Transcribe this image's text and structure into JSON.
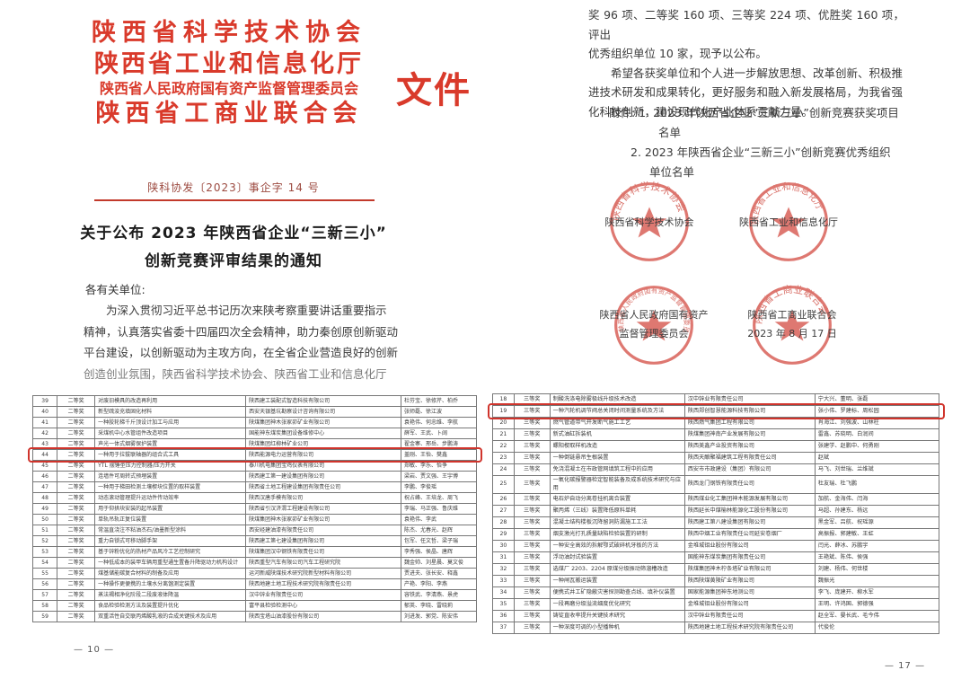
{
  "left_page": {
    "orgs": [
      "陕西省科学技术协会",
      "陕西省工业和信息化厅",
      "陕西省人民政府国有资产监督管理委员会",
      "陕西省工商业联合会"
    ],
    "file_label": "文件",
    "doc_number": "陕科协发〔2023〕事企字 14 号",
    "title_line1": "关于公布 2023 年陕西省企业“三新三小”",
    "title_line2": "创新竞赛评审结果的通知",
    "salutation": "各有关单位:",
    "body_lines": [
      "为深入贯彻习近平总书记历次来陕考察重要讲话重要指示",
      "精神，认真落实省委十四届四次全会精神，助力秦创原创新驱动",
      "平台建设，以创新驱动为主攻方向，在全省企业营造良好的创新",
      "创造创业氛围，陕西省科学技术协会、陕西省工业和信息化厅"
    ]
  },
  "right_page": {
    "body_lines": [
      "奖 96 项、二等奖 160 项、三等奖 224 项、优胜奖 160 项，评出",
      "优秀组织单位 10 家，现予以公布。",
      "希望各获奖单位和个人进一步解放思想、改革创新、积极推",
      "进技术研发和成果转化，更好服务和融入新发展格局，为我省强",
      "化科技创新，建设现代化产业体系贡献力量。"
    ],
    "attachment_lines": [
      "附件: 1. 2023 年陕西省企业“三新三小”创新竞赛获奖项目",
      "名单",
      "2. 2023 年陕西省企业“三新三小”创新竞赛优秀组织",
      "单位名单"
    ],
    "seals": [
      {
        "arc": "陕西省科学技术协会",
        "label": "陕西省科学技术协会",
        "label2": ""
      },
      {
        "arc": "陕西省工业和信息化厅",
        "label": "陕西省工业和信息化厅",
        "label2": ""
      },
      {
        "arc": "陕西省人民政府国有资产监督管理委员会",
        "label": "陕西省人民政府国有资产",
        "label2": "监督管理委员会"
      },
      {
        "arc": "陕西省工商业联合会",
        "label": "陕西省工商业联合会",
        "label2": "2023 年 8 月 17 日"
      }
    ]
  },
  "left_table": {
    "page_number": "— 10 —",
    "rows": [
      {
        "no": "39",
        "award": "二等奖",
        "project": "对废旧模具的改造再利用",
        "company": "陕西建工装配式智造科技有限公司",
        "names": "杜芬宝、徐修芹、柏乔",
        "highlight": false
      },
      {
        "no": "40",
        "award": "二等奖",
        "project": "新型疏浚充填固化材料",
        "company": "西安天银基坑勘察设计咨询有限公司",
        "names": "张师磊、徐江波",
        "highlight": false
      },
      {
        "no": "41",
        "award": "二等奖",
        "project": "一种胶轮梯千斤顶设计加工与应用",
        "company": "陕煤集团神木张家峁矿业有限公司",
        "names": "袁艳伟、何忠维、李航",
        "highlight": false
      },
      {
        "no": "42",
        "award": "二等奖",
        "project": "采煤机中心水管组件改造项目",
        "company": "国能神东煤炭集团设备维修中心",
        "names": "薛军、王武、卜阔",
        "highlight": false
      },
      {
        "no": "43",
        "award": "二等奖",
        "project": "声光一体式烟雾保护装置",
        "company": "陕煤集团红柳林矿业公司",
        "names": "翟金寨、邢岳、步鹏涛",
        "highlight": false
      },
      {
        "no": "44",
        "award": "二等奖",
        "project": "一种用于拉拔联轴器的组合式工具",
        "company": "陕西能源电力运营有限公司",
        "names": "盖刚、王怡、樊鑫",
        "highlight": true
      },
      {
        "no": "45",
        "award": "二等奖",
        "project": "YTL 摆锤型压力控制器/压力开关",
        "company": "泰川机电集团宝鸡仪表有限公司",
        "names": "郑敏、李乐、怡争",
        "highlight": false
      },
      {
        "no": "46",
        "award": "二等奖",
        "project": "连墙件可周转式预埋装置",
        "company": "陕西建工第一建设集团有限公司",
        "names": "梁岩、贾文强、王宇博",
        "highlight": false
      },
      {
        "no": "47",
        "award": "二等奖",
        "project": "一种用于梯田检测土壤楔块位置的取样装置",
        "company": "陕西省土地工程建设集团有限责任公司",
        "names": "李鹏、李俊瑶",
        "highlight": false
      },
      {
        "no": "48",
        "award": "二等奖",
        "project": "动态滚动管理提升运动件传动效率",
        "company": "陕西汉唐手模有限公司",
        "names": "祝占峰、王培龙、周飞",
        "highlight": false
      },
      {
        "no": "49",
        "award": "二等奖",
        "project": "用于仰拱块安装的起吊装置",
        "company": "陕西省引汉济渭工程建设有限公司",
        "names": "李瑞、马正强、鲁庆维",
        "highlight": false
      },
      {
        "no": "50",
        "award": "二等奖",
        "project": "单轨吊轨正复位装置",
        "company": "陕煤集团神木张家峁矿业有限公司",
        "names": "袁艳伟、李武",
        "highlight": false
      },
      {
        "no": "51",
        "award": "二等奖",
        "project": "常温直浇注不粘油杰石/油墨新型涂料",
        "company": "西安经建油漆有限责任公司",
        "names": "陈杰、尤春光、赵辉",
        "highlight": false
      },
      {
        "no": "52",
        "award": "二等奖",
        "project": "重力自锁式可移动脚手架",
        "company": "陕西建工第七建设集团有限公司",
        "names": "包军、任文哲、梁子瑞",
        "highlight": false
      },
      {
        "no": "53",
        "award": "二等奖",
        "project": "基于锌粉优化的热材产品风冷工艺控制研究",
        "company": "陕煤集团汉中钢铁有限责任公司",
        "names": "李秀强、侯晶、唐辉",
        "highlight": false
      },
      {
        "no": "54",
        "award": "二等奖",
        "project": "一种低成本的装甲车辆用重型通生置备升降驱动力机构设计",
        "company": "陕西重型汽车有限公司汽车工程研究院",
        "names": "魏金帅、刘星晨、莫文俊",
        "highlight": false
      },
      {
        "no": "55",
        "award": "二等奖",
        "project": "煤基储能碳复合材料的制备及应用",
        "company": "运河新威陕煤技术研究院新型材料有限公司",
        "names": "贾进夫、张长安、释鑫",
        "highlight": false
      },
      {
        "no": "56",
        "award": "二等奖",
        "project": "一种操作更便携的土壤水分离馏测定装置",
        "company": "陕西地建土地工程技术研究院有限责任公司",
        "names": "产艳、李阳、李燕",
        "highlight": false
      },
      {
        "no": "57",
        "award": "二等奖",
        "project": "蒸法褐相净化阶段二段废液体降温",
        "company": "汉中锌业有限责任公司",
        "names": "容铁武、李清燕、景虎",
        "highlight": false
      },
      {
        "no": "58",
        "award": "二等奖",
        "project": "食品检验检测方法及装置提升优化",
        "company": "富平县检验检测中心",
        "names": "郁英、李晓、雷晓莉",
        "highlight": false
      },
      {
        "no": "59",
        "award": "二等奖",
        "project": "双重活性自交联丙烯酸乳液的合成关键技术及应用",
        "company": "陕西宝塔山油漆股份有限公司",
        "names": "刘进发、郭党、陈安伟",
        "highlight": false
      }
    ]
  },
  "right_table": {
    "page_number": "— 17 —",
    "rows": [
      {
        "no": "18",
        "award": "三等奖",
        "project": "制酸洗涤电除雾极线升级技术改造",
        "company": "汉中锌业有限责任公司",
        "names": "宁大兴、董明、张磊",
        "highlight": false
      },
      {
        "no": "19",
        "award": "三等奖",
        "project": "一种汽轮机调节阀总关闭时间测量系统及方法",
        "company": "陕西郑创智慧能源科技有限公司",
        "names": "张小伟、罗建标、周松园",
        "highlight": true
      },
      {
        "no": "20",
        "award": "三等奖",
        "project": "燃气管道带气开发断气施工工艺",
        "company": "陕西燃气集团工程有限公司",
        "names": "肖海江、刘强波、山林柱",
        "highlight": false
      },
      {
        "no": "21",
        "award": "三等奖",
        "project": "新式油缸拆装机",
        "company": "陕煤集团神南产业发展有限公司",
        "names": "雷鑫、苏晓明、白润间",
        "highlight": false
      },
      {
        "no": "22",
        "award": "三等奖",
        "project": "螺阳楔取样机改造",
        "company": "陕西美鑫产业投资有限公司",
        "names": "张建学、赵鹏中、何勇刚",
        "highlight": false
      },
      {
        "no": "23",
        "award": "三等奖",
        "project": "一种倒链悬吊生根装置",
        "company": "陕西天酿聚福建筑工程有限责任公司",
        "names": "赵斌",
        "highlight": false
      },
      {
        "no": "24",
        "award": "三等奖",
        "project": "免浇混凝土在市政管网填筑工程中的应用",
        "company": "西安市市政建设（集团）有限公司",
        "names": "马飞、刘世瑞、兰维斌",
        "highlight": false
      },
      {
        "no": "25",
        "award": "三等奖",
        "project": "一氧化碳报警器检定智能装备及成系统技术研究与应用",
        "company": "陕西龙门钢铁有限责任公司",
        "names": "杜友瑞、杜飞鹏",
        "highlight": false
      },
      {
        "no": "26",
        "award": "三等奖",
        "project": "电石炉自动分离卷挂机离合装置",
        "company": "陕西煤业化工集团神木能源发展有限公司",
        "names": "加航、金海伟、闫海",
        "highlight": false
      },
      {
        "no": "27",
        "award": "三等奖",
        "project": "聚丙烯（三线）装置降低原料单耗",
        "company": "陕西延长中煤榆林能源化工股份有限公司",
        "names": "马超、孙建东、杨远",
        "highlight": false
      },
      {
        "no": "28",
        "award": "三等奖",
        "project": "混凝土结构楼板沉降留洞防漏施工工法",
        "company": "陕西建工第八建设集团有限公司",
        "names": "黑金军、吕航、祝瑶源",
        "highlight": false
      },
      {
        "no": "29",
        "award": "三等奖",
        "project": "烟支激光打孔质量缺陷检验装置的研制",
        "company": "陕西中烟工业有限责任公司延安卷烟厂",
        "names": "高振报、郭建敏、王虹",
        "highlight": false
      },
      {
        "no": "30",
        "award": "三等奖",
        "project": "一种安全高效的拆解鄂式破碎机牙板的方法",
        "company": "金堆城钼业股份有限公司",
        "names": "闫光、薛冰、苏鹏宇",
        "highlight": false
      },
      {
        "no": "31",
        "award": "三等奖",
        "project": "浮动油封试验装置",
        "company": "国能神东煤炭集团有限责任公司",
        "names": "王艳斌、陈伟、侯强",
        "highlight": false
      },
      {
        "no": "32",
        "award": "三等奖",
        "project": "选煤厂 2203、2204 原煤分级振动筛溜槽改造",
        "company": "陕煤集团神木柠条塔矿业有限公司",
        "names": "刘建、杨伟、何世楼",
        "highlight": false
      },
      {
        "no": "33",
        "award": "三等奖",
        "project": "一种闸瓦搬运装置",
        "company": "陕西陕煤黄陵矿业有限公司",
        "names": "魏振光",
        "highlight": false
      },
      {
        "no": "34",
        "award": "三等奖",
        "project": "便携式井工矿隐蔽灾害探测勘查点线、填补仪装置",
        "company": "国家能源集团神东地测公司",
        "names": "李飞、庞建开、柳水军",
        "highlight": false
      },
      {
        "no": "35",
        "award": "三等奖",
        "project": "一段再磨分级溢流细度优化研究",
        "company": "金堆城钼业股份有限公司",
        "names": "王明、许鸿国、郭德强",
        "highlight": false
      },
      {
        "no": "36",
        "award": "三等奖",
        "project": "铸锭直收率提升关键技术研究",
        "company": "汉中锌业有限责任公司",
        "names": "赵全军、晏长武、毛今伟",
        "highlight": false
      },
      {
        "no": "37",
        "award": "三等奖",
        "project": "一种深度可调的小型播种机",
        "company": "陕西地建土地工程技术研究院有限责任公司",
        "names": "代俊伦",
        "highlight": false
      }
    ]
  },
  "colors": {
    "header_red": "#d93a2b",
    "rule_red": "#c2392b",
    "highlight_red": "#d0342c",
    "seal_red": "#d6534a",
    "body_text": "#3a3a3a"
  }
}
